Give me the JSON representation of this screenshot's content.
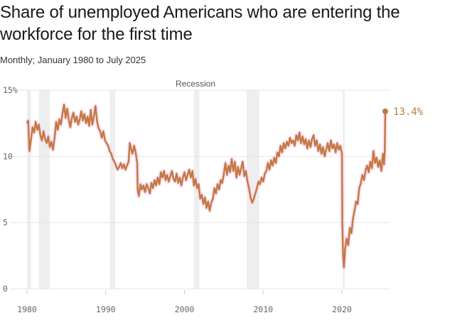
{
  "title": "Share of unemployed Americans who are entering the workforce for the first time",
  "subtitle": "Monthly; January 1980 to July 2025",
  "recession_label": "Recession",
  "end_label": "13.4%",
  "colors": {
    "line": "#b57d3f",
    "line_highlight": "#e8572a",
    "recession": "#eeeeee",
    "grid": "#e6e6e6",
    "glow": "#f8d5f0"
  },
  "chart_data": {
    "type": "line",
    "title": "Share of unemployed Americans who are entering the workforce for the first time",
    "subtitle": "Monthly; January 1980 to July 2025",
    "x_unit": "year",
    "ylim": [
      0,
      15
    ],
    "xlim": [
      1980,
      2025.6
    ],
    "y_ticks": [
      {
        "value": 0,
        "label": "0"
      },
      {
        "value": 5,
        "label": "5"
      },
      {
        "value": 10,
        "label": "10"
      },
      {
        "value": 15,
        "label": "15%"
      }
    ],
    "x_ticks": [
      {
        "value": 1980,
        "label": "1980"
      },
      {
        "value": 1990,
        "label": "1990"
      },
      {
        "value": 2000,
        "label": "2000"
      },
      {
        "value": 2010,
        "label": "2010"
      },
      {
        "value": 2020,
        "label": "2020"
      }
    ],
    "recessions": [
      {
        "start": 1980.0,
        "end": 1980.5
      },
      {
        "start": 1981.5,
        "end": 1982.9
      },
      {
        "start": 1990.5,
        "end": 1991.2
      },
      {
        "start": 2001.2,
        "end": 2001.9
      },
      {
        "start": 2007.9,
        "end": 2009.5
      },
      {
        "start": 2020.1,
        "end": 2020.3
      }
    ],
    "series": [
      {
        "points": [
          [
            1980.0,
            12.5
          ],
          [
            1980.15,
            12.7
          ],
          [
            1980.3,
            10.4
          ],
          [
            1980.5,
            11.2
          ],
          [
            1980.7,
            12.2
          ],
          [
            1980.9,
            11.8
          ],
          [
            1981.1,
            12.6
          ],
          [
            1981.3,
            12.0
          ],
          [
            1981.5,
            12.4
          ],
          [
            1981.7,
            11.6
          ],
          [
            1981.9,
            11.2
          ],
          [
            1982.1,
            11.9
          ],
          [
            1982.3,
            11.3
          ],
          [
            1982.5,
            11.0
          ],
          [
            1982.7,
            11.5
          ],
          [
            1982.9,
            10.7
          ],
          [
            1983.1,
            11.1
          ],
          [
            1983.3,
            10.5
          ],
          [
            1983.5,
            11.4
          ],
          [
            1983.7,
            12.6
          ],
          [
            1983.9,
            12.0
          ],
          [
            1984.1,
            12.8
          ],
          [
            1984.3,
            12.4
          ],
          [
            1984.5,
            13.2
          ],
          [
            1984.7,
            13.9
          ],
          [
            1984.9,
            12.9
          ],
          [
            1985.1,
            13.6
          ],
          [
            1985.3,
            12.8
          ],
          [
            1985.5,
            12.2
          ],
          [
            1985.7,
            12.9
          ],
          [
            1985.9,
            13.3
          ],
          [
            1986.1,
            12.6
          ],
          [
            1986.3,
            13.0
          ],
          [
            1986.5,
            12.4
          ],
          [
            1986.7,
            12.8
          ],
          [
            1986.9,
            13.4
          ],
          [
            1987.1,
            12.7
          ],
          [
            1987.3,
            13.2
          ],
          [
            1987.5,
            12.5
          ],
          [
            1987.7,
            13.0
          ],
          [
            1987.9,
            12.3
          ],
          [
            1988.1,
            13.5
          ],
          [
            1988.3,
            12.4
          ],
          [
            1988.5,
            13.0
          ],
          [
            1988.7,
            13.8
          ],
          [
            1988.9,
            12.6
          ],
          [
            1989.1,
            12.1
          ],
          [
            1989.3,
            11.9
          ],
          [
            1989.5,
            11.4
          ],
          [
            1989.7,
            11.9
          ],
          [
            1989.9,
            11.2
          ],
          [
            1990.1,
            11.0
          ],
          [
            1990.3,
            10.8
          ],
          [
            1990.5,
            10.4
          ],
          [
            1990.7,
            10.2
          ],
          [
            1990.9,
            9.8
          ],
          [
            1991.1,
            9.6
          ],
          [
            1991.3,
            9.3
          ],
          [
            1991.5,
            9.0
          ],
          [
            1991.7,
            9.2
          ],
          [
            1991.9,
            9.5
          ],
          [
            1992.1,
            9.1
          ],
          [
            1992.3,
            9.4
          ],
          [
            1992.5,
            9.0
          ],
          [
            1992.7,
            9.3
          ],
          [
            1992.9,
            9.6
          ],
          [
            1993.05,
            11.0
          ],
          [
            1993.2,
            10.6
          ],
          [
            1993.4,
            10.2
          ],
          [
            1993.6,
            10.8
          ],
          [
            1993.8,
            10.3
          ],
          [
            1994.0,
            9.5
          ],
          [
            1994.05,
            7.5
          ],
          [
            1994.2,
            7.0
          ],
          [
            1994.4,
            7.9
          ],
          [
            1994.6,
            7.5
          ],
          [
            1994.8,
            7.8
          ],
          [
            1995.0,
            7.3
          ],
          [
            1995.2,
            7.9
          ],
          [
            1995.4,
            7.6
          ],
          [
            1995.6,
            7.2
          ],
          [
            1995.8,
            8.0
          ],
          [
            1996.0,
            7.6
          ],
          [
            1996.2,
            8.2
          ],
          [
            1996.4,
            7.8
          ],
          [
            1996.6,
            8.4
          ],
          [
            1996.8,
            7.9
          ],
          [
            1997.0,
            8.8
          ],
          [
            1997.2,
            8.4
          ],
          [
            1997.4,
            8.9
          ],
          [
            1997.6,
            8.2
          ],
          [
            1997.8,
            8.6
          ],
          [
            1998.0,
            8.1
          ],
          [
            1998.2,
            8.5
          ],
          [
            1998.4,
            8.9
          ],
          [
            1998.6,
            8.3
          ],
          [
            1998.8,
            8.1
          ],
          [
            1999.0,
            8.7
          ],
          [
            1999.2,
            8.0
          ],
          [
            1999.4,
            8.4
          ],
          [
            1999.6,
            7.8
          ],
          [
            1999.8,
            8.4
          ],
          [
            2000.0,
            8.8
          ],
          [
            2000.2,
            8.2
          ],
          [
            2000.4,
            8.6
          ],
          [
            2000.6,
            9.0
          ],
          [
            2000.8,
            8.4
          ],
          [
            2001.0,
            8.9
          ],
          [
            2001.2,
            7.8
          ],
          [
            2001.4,
            8.3
          ],
          [
            2001.6,
            7.6
          ],
          [
            2001.8,
            7.9
          ],
          [
            2002.0,
            6.8
          ],
          [
            2002.2,
            7.1
          ],
          [
            2002.4,
            6.4
          ],
          [
            2002.6,
            6.9
          ],
          [
            2002.8,
            6.1
          ],
          [
            2003.0,
            6.6
          ],
          [
            2003.2,
            5.9
          ],
          [
            2003.4,
            6.5
          ],
          [
            2003.6,
            6.8
          ],
          [
            2003.8,
            7.6
          ],
          [
            2004.0,
            7.2
          ],
          [
            2004.2,
            7.9
          ],
          [
            2004.4,
            7.5
          ],
          [
            2004.6,
            8.2
          ],
          [
            2004.8,
            8.0
          ],
          [
            2005.0,
            8.7
          ],
          [
            2005.2,
            9.5
          ],
          [
            2005.4,
            8.6
          ],
          [
            2005.6,
            9.3
          ],
          [
            2005.8,
            8.8
          ],
          [
            2006.0,
            9.8
          ],
          [
            2006.2,
            8.9
          ],
          [
            2006.4,
            9.6
          ],
          [
            2006.6,
            8.4
          ],
          [
            2006.8,
            9.2
          ],
          [
            2007.0,
            8.6
          ],
          [
            2007.2,
            9.1
          ],
          [
            2007.4,
            9.6
          ],
          [
            2007.6,
            8.5
          ],
          [
            2007.8,
            8.9
          ],
          [
            2008.0,
            8.1
          ],
          [
            2008.2,
            7.6
          ],
          [
            2008.4,
            6.9
          ],
          [
            2008.6,
            6.5
          ],
          [
            2008.8,
            6.8
          ],
          [
            2009.0,
            7.2
          ],
          [
            2009.2,
            7.6
          ],
          [
            2009.4,
            8.1
          ],
          [
            2009.6,
            7.9
          ],
          [
            2009.8,
            8.4
          ],
          [
            2010.0,
            8.1
          ],
          [
            2010.2,
            8.7
          ],
          [
            2010.4,
            8.9
          ],
          [
            2010.6,
            9.5
          ],
          [
            2010.8,
            9.0
          ],
          [
            2011.0,
            9.7
          ],
          [
            2011.2,
            9.3
          ],
          [
            2011.4,
            9.9
          ],
          [
            2011.6,
            9.5
          ],
          [
            2011.8,
            10.3
          ],
          [
            2012.0,
            10.0
          ],
          [
            2012.2,
            10.8
          ],
          [
            2012.4,
            10.3
          ],
          [
            2012.6,
            11.0
          ],
          [
            2012.8,
            10.6
          ],
          [
            2013.0,
            11.1
          ],
          [
            2013.2,
            10.8
          ],
          [
            2013.4,
            11.4
          ],
          [
            2013.6,
            11.0
          ],
          [
            2013.8,
            11.2
          ],
          [
            2014.0,
            10.8
          ],
          [
            2014.2,
            11.6
          ],
          [
            2014.4,
            11.2
          ],
          [
            2014.6,
            11.8
          ],
          [
            2014.8,
            11.0
          ],
          [
            2015.0,
            11.5
          ],
          [
            2015.2,
            10.9
          ],
          [
            2015.4,
            11.3
          ],
          [
            2015.6,
            10.6
          ],
          [
            2015.8,
            11.2
          ],
          [
            2016.0,
            10.7
          ],
          [
            2016.2,
            11.3
          ],
          [
            2016.4,
            11.6
          ],
          [
            2016.6,
            10.8
          ],
          [
            2016.8,
            11.2
          ],
          [
            2017.0,
            10.4
          ],
          [
            2017.2,
            10.9
          ],
          [
            2017.4,
            10.2
          ],
          [
            2017.6,
            10.7
          ],
          [
            2017.8,
            10.0
          ],
          [
            2018.0,
            10.5
          ],
          [
            2018.2,
            11.0
          ],
          [
            2018.4,
            10.4
          ],
          [
            2018.6,
            11.2
          ],
          [
            2018.8,
            10.6
          ],
          [
            2019.0,
            10.9
          ],
          [
            2019.2,
            10.3
          ],
          [
            2019.4,
            11.0
          ],
          [
            2019.6,
            10.5
          ],
          [
            2019.8,
            10.8
          ],
          [
            2020.0,
            10.2
          ],
          [
            2020.05,
            5.0
          ],
          [
            2020.15,
            2.5
          ],
          [
            2020.25,
            1.6
          ],
          [
            2020.4,
            3.0
          ],
          [
            2020.6,
            3.8
          ],
          [
            2020.8,
            3.3
          ],
          [
            2021.0,
            4.6
          ],
          [
            2021.2,
            4.2
          ],
          [
            2021.4,
            5.3
          ],
          [
            2021.6,
            5.9
          ],
          [
            2021.8,
            6.6
          ],
          [
            2022.0,
            6.4
          ],
          [
            2022.2,
            7.6
          ],
          [
            2022.4,
            8.0
          ],
          [
            2022.6,
            8.6
          ],
          [
            2022.8,
            8.2
          ],
          [
            2023.0,
            8.9
          ],
          [
            2023.2,
            9.3
          ],
          [
            2023.4,
            8.8
          ],
          [
            2023.6,
            9.6
          ],
          [
            2023.8,
            9.1
          ],
          [
            2024.0,
            10.4
          ],
          [
            2024.2,
            9.5
          ],
          [
            2024.4,
            9.9
          ],
          [
            2024.6,
            9.2
          ],
          [
            2024.8,
            9.7
          ],
          [
            2025.0,
            8.9
          ],
          [
            2025.2,
            10.2
          ],
          [
            2025.35,
            9.4
          ],
          [
            2025.45,
            10.5
          ],
          [
            2025.5,
            13.4
          ]
        ]
      }
    ]
  }
}
